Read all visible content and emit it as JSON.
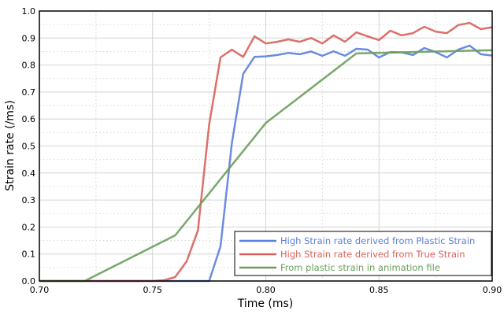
{
  "chart_data": {
    "type": "line",
    "xlabel": "Time (ms)",
    "ylabel": "Strain rate (/ms)",
    "xlim": [
      0.7,
      0.9
    ],
    "ylim": [
      0.0,
      1.0
    ],
    "xticks": [
      "0.70",
      "0.75",
      "0.80",
      "0.85",
      "0.90"
    ],
    "yticks": [
      "0.0",
      "0.1",
      "0.2",
      "0.3",
      "0.4",
      "0.5",
      "0.6",
      "0.7",
      "0.8",
      "0.9",
      "1.0"
    ],
    "grid": true,
    "legend_position": "bottom-right",
    "series": [
      {
        "name": "High Strain rate derived from Plastic Strain",
        "color": "#5b7fdc",
        "x": [
          0.7,
          0.705,
          0.71,
          0.715,
          0.72,
          0.725,
          0.73,
          0.735,
          0.74,
          0.745,
          0.75,
          0.755,
          0.76,
          0.765,
          0.77,
          0.775,
          0.78,
          0.785,
          0.79,
          0.795,
          0.8,
          0.805,
          0.81,
          0.815,
          0.82,
          0.825,
          0.83,
          0.835,
          0.84,
          0.845,
          0.85,
          0.855,
          0.86,
          0.865,
          0.87,
          0.875,
          0.88,
          0.885,
          0.89,
          0.895,
          0.9
        ],
        "y": [
          0,
          0,
          0,
          0,
          0,
          0,
          0,
          0,
          0,
          0,
          0,
          0,
          0,
          0,
          0,
          0,
          0.128,
          0.51,
          0.767,
          0.83,
          0.832,
          0.837,
          0.845,
          0.84,
          0.85,
          0.834,
          0.851,
          0.834,
          0.86,
          0.857,
          0.828,
          0.848,
          0.847,
          0.837,
          0.863,
          0.848,
          0.828,
          0.857,
          0.872,
          0.84,
          0.835
        ]
      },
      {
        "name": "High Strain rate derived from True Strain",
        "color": "#d9605a",
        "x": [
          0.7,
          0.705,
          0.71,
          0.715,
          0.72,
          0.725,
          0.73,
          0.735,
          0.74,
          0.745,
          0.75,
          0.755,
          0.76,
          0.765,
          0.77,
          0.775,
          0.78,
          0.785,
          0.79,
          0.795,
          0.8,
          0.805,
          0.81,
          0.815,
          0.82,
          0.825,
          0.83,
          0.835,
          0.84,
          0.845,
          0.85,
          0.855,
          0.86,
          0.865,
          0.87,
          0.875,
          0.88,
          0.885,
          0.89,
          0.895,
          0.9
        ],
        "y": [
          0,
          0,
          0,
          0,
          0,
          0,
          0,
          0,
          0,
          0,
          0,
          0.003,
          0.015,
          0.072,
          0.187,
          0.58,
          0.828,
          0.857,
          0.83,
          0.906,
          0.88,
          0.886,
          0.895,
          0.886,
          0.9,
          0.88,
          0.91,
          0.886,
          0.921,
          0.906,
          0.892,
          0.927,
          0.91,
          0.918,
          0.942,
          0.924,
          0.918,
          0.948,
          0.956,
          0.933,
          0.94
        ]
      },
      {
        "name": "From plastic strain in animation file",
        "color": "#6a9e5c",
        "x": [
          0.7,
          0.72,
          0.76,
          0.8,
          0.84,
          0.9
        ],
        "y": [
          0,
          0,
          0.169,
          0.585,
          0.843,
          0.855
        ]
      }
    ]
  }
}
